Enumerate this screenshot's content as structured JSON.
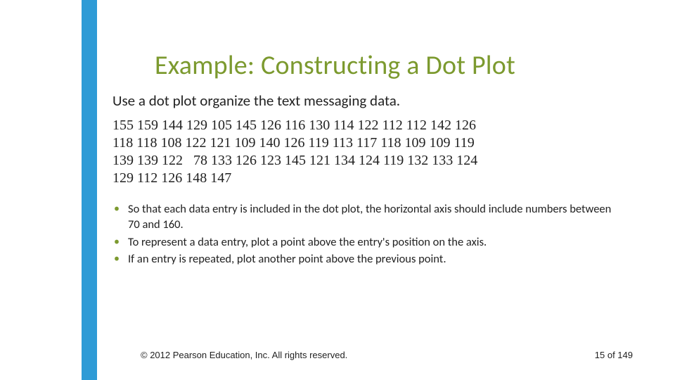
{
  "accent_color": "#2e9bd6",
  "title_color": "#7c9a2f",
  "title": "Example: Constructing a Dot Plot",
  "subtitle": "Use a dot plot organize the text messaging data.",
  "data_rows": [
    "155 159 144 129 105 145 126 116 130 114 122 112 112 142 126",
    "118 118 108 122 121 109 140 126 119 113 117 118 109 109 119",
    "139 139 122   78 133 126 123 145 121 134 124 119 132 133 124",
    "129 112 126 148 147"
  ],
  "bullets": [
    "So that each data entry is included in the dot plot, the horizontal axis should include numbers between 70 and 160.",
    "To represent a data entry, plot a point above the entry's position on the axis.",
    "If an entry is repeated, plot another point above the previous point."
  ],
  "footer": {
    "copyright": "© 2012 Pearson Education, Inc. All rights reserved.",
    "page": "15 of 149"
  }
}
